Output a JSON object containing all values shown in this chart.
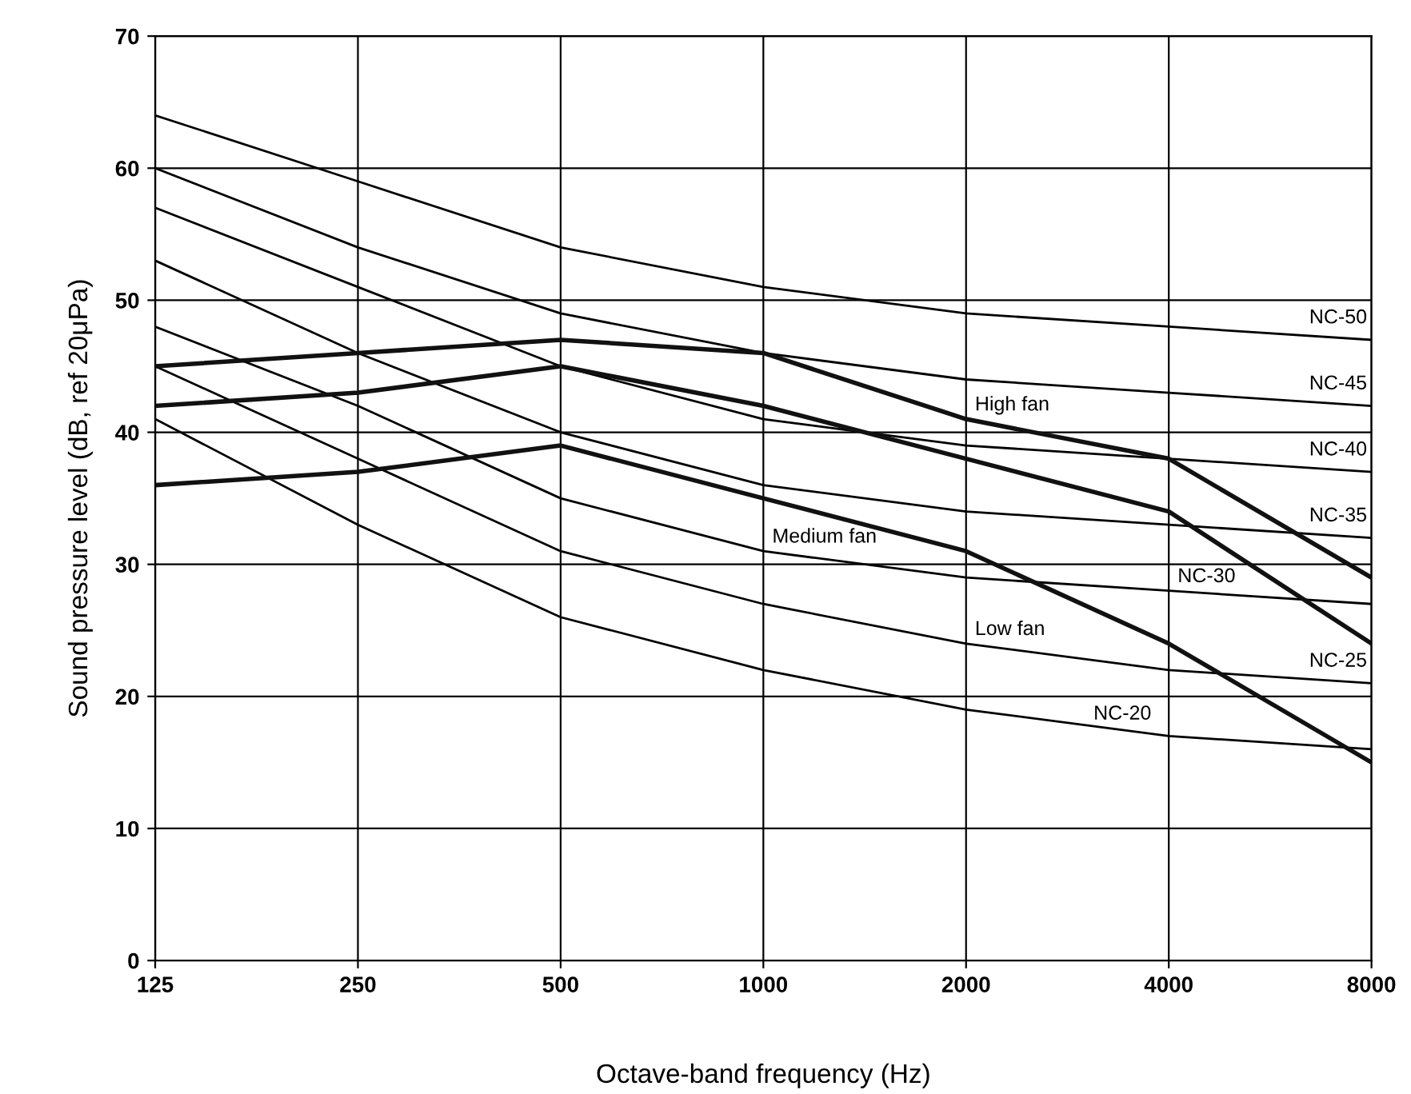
{
  "chart_data": {
    "type": "line",
    "xlabel": "Octave-band frequency (Hz)",
    "ylabel": "Sound pressure level (dB, ref 20μPa)",
    "log": "x",
    "x": [
      125,
      250,
      500,
      1000,
      2000,
      4000,
      8000
    ],
    "xlim": [
      125,
      8000
    ],
    "xticks": [
      125,
      250,
      500,
      1000,
      2000,
      4000,
      8000
    ],
    "ylim": [
      0,
      70
    ],
    "yticks": [
      0,
      10,
      20,
      30,
      40,
      50,
      60,
      70
    ],
    "grid": true,
    "legend": false,
    "marker": "none",
    "line_style": "solid",
    "series": [
      {
        "color": "#000000",
        "values": [
          64,
          59,
          54,
          51,
          49,
          48,
          47
        ]
      },
      {
        "color": "#000000",
        "values": [
          60,
          54,
          49,
          46,
          44,
          43,
          42
        ]
      },
      {
        "color": "#000000",
        "values": [
          57,
          51,
          45,
          41,
          39,
          38,
          37
        ]
      },
      {
        "color": "#000000",
        "values": [
          53,
          46,
          40,
          36,
          34,
          33,
          32
        ]
      },
      {
        "color": "#000000",
        "values": [
          48,
          42,
          35,
          31,
          29,
          28,
          27
        ]
      },
      {
        "color": "#000000",
        "values": [
          45,
          38,
          31,
          27,
          24,
          22,
          21
        ]
      },
      {
        "color": "#000000",
        "values": [
          41,
          33,
          26,
          22,
          19,
          17,
          16
        ]
      },
      {
        "color": "#111111",
        "values": [
          45,
          46,
          47,
          46,
          41,
          38,
          29
        ]
      },
      {
        "color": "#111111",
        "values": [
          42,
          43,
          45,
          42,
          38,
          34,
          24
        ]
      },
      {
        "color": "#111111",
        "values": [
          36,
          37,
          39,
          35,
          31,
          24,
          15
        ]
      }
    ],
    "annotations": [
      {
        "text": "NC-50",
        "x": 8000,
        "y": 47.6
      },
      {
        "text": "NC-45",
        "x": 8000,
        "y": 42.6
      },
      {
        "text": "NC-40",
        "x": 8000,
        "y": 37.6
      },
      {
        "text": "NC-35",
        "x": 8000,
        "y": 32.6
      },
      {
        "text": "NC-30",
        "x": 4000,
        "y": 28
      },
      {
        "text": "NC-25",
        "x": 8000,
        "y": 21.6
      },
      {
        "text": "NC-20",
        "x": 3000,
        "y": 17.6
      },
      {
        "text": "High fan",
        "x": 2000,
        "y": 41
      },
      {
        "text": "Medium fan",
        "x": 1000,
        "y": 31
      },
      {
        "text": "Low fan",
        "x": 2000,
        "y": 24
      }
    ]
  }
}
